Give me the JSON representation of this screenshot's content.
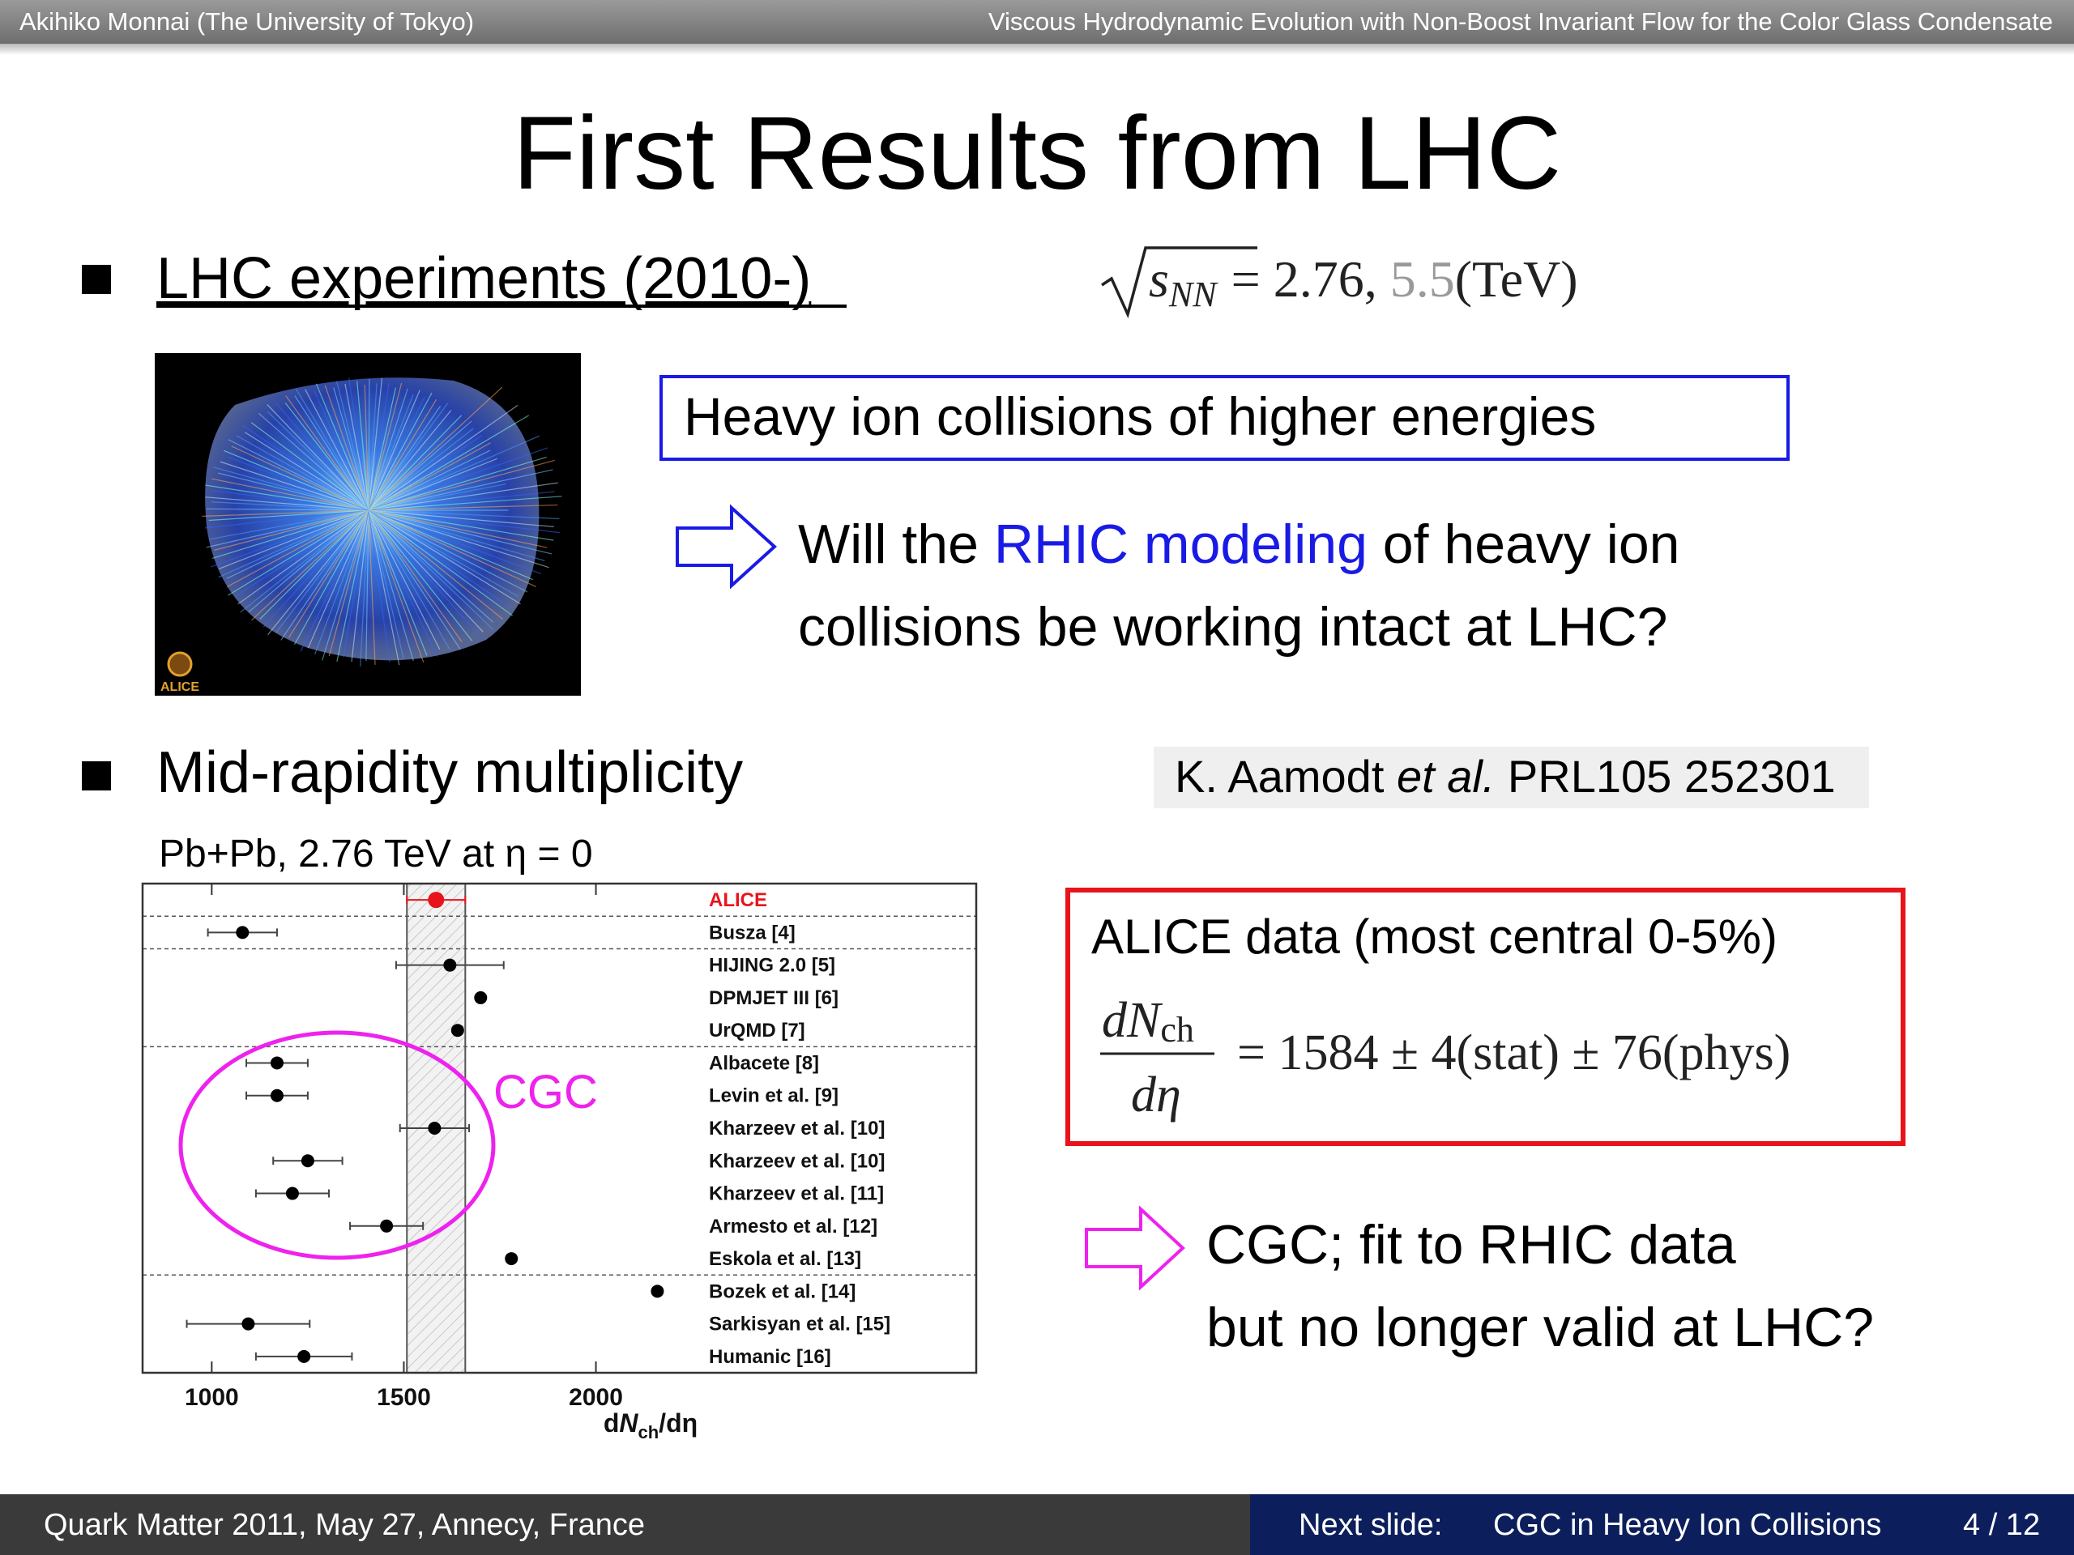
{
  "header": {
    "author": "Akihiko Monnai (The University of Tokyo)",
    "talk_title": "Viscous Hydrodynamic Evolution with Non-Boost Invariant Flow for the Color Glass Condensate"
  },
  "title": "First Results from LHC",
  "bullets": [
    "LHC experiments (2010-)",
    "Mid-rapidity multiplicity"
  ],
  "energy_formula": {
    "s": "s",
    "sub": "NN",
    "equals": "= 2.76, ",
    "gray": "5.5",
    "unit": "(TeV)"
  },
  "event_image_logo": "ALICE",
  "blue_box": "Heavy ion collisions of higher energies",
  "question": {
    "pre": "Will the ",
    "highlight": "RHIC modeling",
    "post": " of heavy ion",
    "line2": "collisions be working intact at LHC?"
  },
  "citation": {
    "pre": "K. Aamodt ",
    "italic": "et al.",
    "post": " PRL105 252301"
  },
  "red_box": {
    "heading": "ALICE data (most central 0-5%)",
    "numerator": "dN",
    "numerator_sub": "ch",
    "denominator": "dη",
    "result": "= 1584 ± 4(stat) ± 76(phys)"
  },
  "cgc_note": [
    "CGC; fit to RHIC data",
    "but no longer valid at LHC?"
  ],
  "chart_data": {
    "type": "errorbar",
    "title": "Pb+Pb, 2.76 TeV at η = 0",
    "xlabel": [
      "d",
      "N",
      "ch",
      "/dη"
    ],
    "categories": [
      "ALICE",
      "Busza [4]",
      "HIJING 2.0 [5]",
      "DPMJET III [6]",
      "UrQMD [7]",
      "Albacete [8]",
      "Levin et al. [9]",
      "Kharzeev et al. [10]",
      "Kharzeev et al. [10]",
      "Kharzeev et al. [11]",
      "Armesto et al. [12]",
      "Eskola et al. [13]",
      "Bozek et al. [14]",
      "Sarkisyan et al. [15]",
      "Humanic [16]"
    ],
    "values": [
      1584,
      1080,
      1620,
      1700,
      1640,
      1170,
      1170,
      1580,
      1250,
      1210,
      1455,
      1780,
      2160,
      1095,
      1240
    ],
    "errors": [
      76,
      90,
      140,
      null,
      null,
      80,
      80,
      90,
      90,
      95,
      95,
      null,
      null,
      160,
      125
    ],
    "color": "#000000",
    "highlight": {
      "index": 0,
      "color": "#e8141b"
    },
    "dividers": [
      0,
      1,
      4,
      11
    ],
    "annotation": "CGC",
    "xlim": [
      820,
      2990
    ],
    "xticks": [
      1000,
      1500,
      2000
    ]
  },
  "footer": {
    "event": "Quark Matter 2011, May 27, Annecy, France",
    "next_label": "Next slide:",
    "next_title": "CGC in Heavy Ion Collisions",
    "page": "4 / 12"
  }
}
